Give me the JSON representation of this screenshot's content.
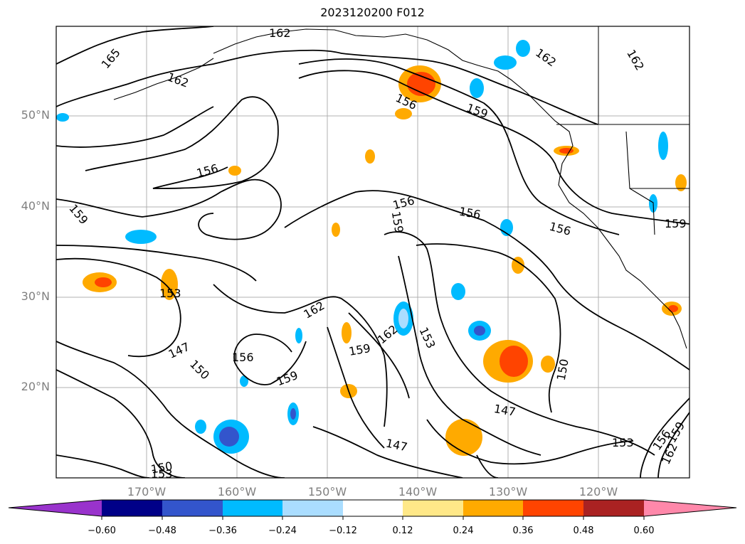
{
  "title": "2023120200 F012",
  "map": {
    "lat_labels": [
      "50°N",
      "40°N",
      "30°N",
      "20°N"
    ],
    "lon_labels": [
      "170°W",
      "160°W",
      "150°W",
      "140°W",
      "130°W",
      "120°W"
    ],
    "contour_labels": [
      "162",
      "165",
      "162",
      "162",
      "162",
      "156",
      "159",
      "156",
      "159",
      "159",
      "156",
      "156",
      "156",
      "159",
      "153",
      "162",
      "162",
      "147",
      "150",
      "156",
      "159",
      "159",
      "153",
      "150",
      "147",
      "147",
      "150",
      "153",
      "153",
      "156",
      "162",
      "159"
    ]
  },
  "colorbar": {
    "tick_labels": [
      "−0.60",
      "−0.48",
      "−0.36",
      "−0.24",
      "−0.12",
      "0.12",
      "0.24",
      "0.36",
      "0.48",
      "0.60"
    ],
    "colors": [
      "#9933cc",
      "#000088",
      "#3355cc",
      "#00bbff",
      "#aaddff",
      "#ffffff",
      "#ffe888",
      "#ffaa00",
      "#ff4400",
      "#aa2222",
      "#ff88aa"
    ]
  }
}
